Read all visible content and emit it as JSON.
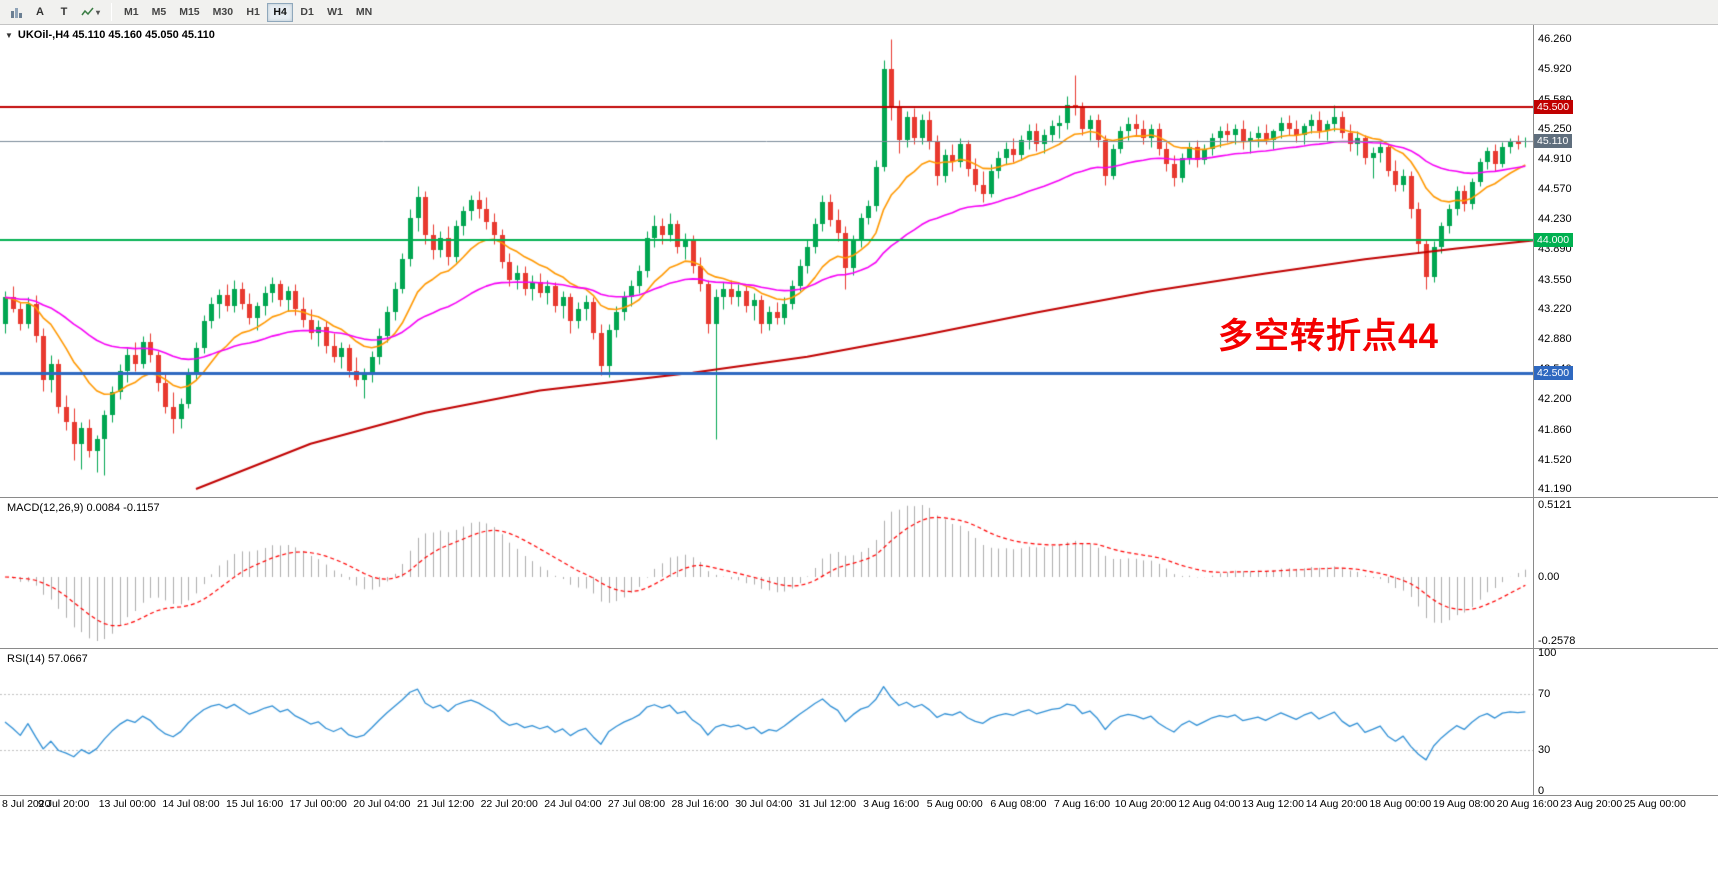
{
  "toolbar": {
    "icons": {
      "a": "A",
      "t": "T",
      "caret": "▾"
    },
    "timeframes": [
      {
        "label": "M1",
        "active": false
      },
      {
        "label": "M5",
        "active": false
      },
      {
        "label": "M15",
        "active": false
      },
      {
        "label": "M30",
        "active": false
      },
      {
        "label": "H1",
        "active": false
      },
      {
        "label": "H4",
        "active": true
      },
      {
        "label": "D1",
        "active": false
      },
      {
        "label": "W1",
        "active": false
      },
      {
        "label": "MN",
        "active": false
      }
    ]
  },
  "chart": {
    "caret_icon": "▼",
    "title": "UKOil-,H4 45.110 45.160 45.050 45.110",
    "annotation": "多空转折点44"
  },
  "macd": {
    "label": "MACD(12,26,9) 0.0084 -0.1157",
    "axis_labels": [
      "0.5121",
      "0.00",
      "-0.2578"
    ],
    "params": {
      "fast": 12,
      "slow": 26,
      "signal": 9
    },
    "values": {
      "macd": "0.0084",
      "signal": "-0.1157"
    }
  },
  "rsi": {
    "label": "RSI(14) 57.0667",
    "axis_labels": [
      "100",
      "70",
      "30",
      "0"
    ],
    "period": 14,
    "value": "57.0667",
    "levels": [
      70,
      30
    ]
  },
  "price_axis": {
    "max": 46.42,
    "min": 41.1,
    "ticks": [
      "46.260",
      "45.920",
      "45.580",
      "45.250",
      "44.910",
      "44.570",
      "44.230",
      "43.890",
      "43.550",
      "43.220",
      "42.880",
      "42.540",
      "42.200",
      "41.860",
      "41.520",
      "41.190"
    ]
  },
  "time_axis": [
    "8 Jul 2020",
    "9 Jul 20:00",
    "13 Jul 00:00",
    "14 Jul 08:00",
    "15 Jul 16:00",
    "17 Jul 00:00",
    "20 Jul 04:00",
    "21 Jul 12:00",
    "22 Jul 20:00",
    "24 Jul 04:00",
    "27 Jul 08:00",
    "28 Jul 16:00",
    "30 Jul 04:00",
    "31 Jul 12:00",
    "3 Aug 16:00",
    "5 Aug 00:00",
    "6 Aug 08:00",
    "7 Aug 16:00",
    "10 Aug 20:00",
    "12 Aug 04:00",
    "13 Aug 12:00",
    "14 Aug 20:00",
    "18 Aug 00:00",
    "19 Aug 08:00",
    "20 Aug 16:00",
    "23 Aug 20:00",
    "25 Aug 00:00"
  ],
  "chart_data": {
    "type": "candlestick",
    "symbol": "UKOil-",
    "timeframe": "H4",
    "ohlc_current": {
      "open": "45.110",
      "high": "45.160",
      "low": "45.050",
      "close": "45.110"
    },
    "colors": {
      "up": "#00A651",
      "down": "#E8392F",
      "ma_fast": "#FF9800",
      "ma_mid": "#F500F5",
      "ma_slow": "#C00000",
      "macd_hist": "#ADADAD",
      "macd_signal": "#FF0000",
      "rsi": "#2F8FD5",
      "rsi_level": "#c0c0c0",
      "annotation": "#F40000"
    },
    "hlines": [
      {
        "price": 45.5,
        "label": "45.500",
        "color": "#C00000",
        "width": 2
      },
      {
        "price": 44.0,
        "label": "44.000",
        "color": "#00B050",
        "width": 2
      },
      {
        "price": 42.5,
        "label": "42.500",
        "color": "#2E68C0",
        "width": 3
      }
    ],
    "current_price": {
      "price": 45.11,
      "label": "45.110",
      "color": "#7A8A99",
      "tag_bg": "#5F6E7D"
    },
    "ma_fast_period": 13,
    "ma_mid_period": 40,
    "ma_slow_points": [
      [
        25,
        41.19
      ],
      [
        40,
        41.7
      ],
      [
        55,
        42.05
      ],
      [
        70,
        42.3
      ],
      [
        90,
        42.5
      ],
      [
        105,
        42.68
      ],
      [
        120,
        42.92
      ],
      [
        135,
        43.18
      ],
      [
        150,
        43.42
      ],
      [
        165,
        43.62
      ],
      [
        178,
        43.78
      ],
      [
        190,
        43.9
      ],
      [
        201,
        44.0
      ]
    ],
    "candles": [
      [
        43.05,
        43.42,
        42.95,
        43.35
      ],
      [
        43.35,
        43.48,
        43.18,
        43.22
      ],
      [
        43.22,
        43.3,
        42.98,
        43.05
      ],
      [
        43.05,
        43.35,
        43.0,
        43.28
      ],
      [
        43.28,
        43.38,
        42.85,
        42.92
      ],
      [
        42.92,
        43.0,
        42.3,
        42.42
      ],
      [
        42.42,
        42.7,
        42.28,
        42.6
      ],
      [
        42.6,
        42.65,
        42.05,
        42.12
      ],
      [
        42.12,
        42.25,
        41.85,
        41.95
      ],
      [
        41.95,
        42.1,
        41.52,
        41.7
      ],
      [
        41.7,
        41.95,
        41.42,
        41.88
      ],
      [
        41.88,
        41.98,
        41.55,
        41.62
      ],
      [
        41.62,
        41.8,
        41.38,
        41.75
      ],
      [
        41.75,
        42.08,
        41.35,
        42.02
      ],
      [
        42.02,
        42.35,
        41.95,
        42.28
      ],
      [
        42.28,
        42.6,
        42.2,
        42.52
      ],
      [
        42.52,
        42.78,
        42.4,
        42.7
      ],
      [
        42.7,
        42.85,
        42.52,
        42.6
      ],
      [
        42.6,
        42.92,
        42.55,
        42.85
      ],
      [
        42.85,
        42.95,
        42.62,
        42.7
      ],
      [
        42.7,
        42.75,
        42.3,
        42.38
      ],
      [
        42.38,
        42.5,
        42.05,
        42.12
      ],
      [
        42.12,
        42.28,
        41.82,
        41.98
      ],
      [
        41.98,
        42.22,
        41.88,
        42.15
      ],
      [
        42.15,
        42.55,
        42.1,
        42.48
      ],
      [
        42.48,
        42.85,
        42.42,
        42.78
      ],
      [
        42.78,
        43.15,
        42.72,
        43.08
      ],
      [
        43.08,
        43.35,
        43.0,
        43.28
      ],
      [
        43.28,
        43.45,
        43.12,
        43.38
      ],
      [
        43.38,
        43.5,
        43.2,
        43.25
      ],
      [
        43.25,
        43.55,
        43.18,
        43.45
      ],
      [
        43.45,
        43.52,
        43.22,
        43.28
      ],
      [
        43.28,
        43.4,
        43.05,
        43.12
      ],
      [
        43.12,
        43.3,
        42.98,
        43.25
      ],
      [
        43.25,
        43.48,
        43.15,
        43.4
      ],
      [
        43.4,
        43.58,
        43.3,
        43.5
      ],
      [
        43.5,
        43.55,
        43.25,
        43.32
      ],
      [
        43.32,
        43.48,
        43.2,
        43.42
      ],
      [
        43.42,
        43.5,
        43.15,
        43.22
      ],
      [
        43.22,
        43.35,
        43.02,
        43.1
      ],
      [
        43.1,
        43.22,
        42.88,
        42.95
      ],
      [
        42.95,
        43.1,
        42.8,
        43.02
      ],
      [
        43.02,
        43.08,
        42.72,
        42.8
      ],
      [
        42.8,
        42.95,
        42.62,
        42.68
      ],
      [
        42.68,
        42.85,
        42.55,
        42.78
      ],
      [
        42.78,
        42.82,
        42.45,
        42.52
      ],
      [
        42.52,
        42.68,
        42.35,
        42.42
      ],
      [
        42.42,
        42.55,
        42.22,
        42.48
      ],
      [
        42.48,
        42.75,
        42.4,
        42.68
      ],
      [
        42.68,
        43.0,
        42.6,
        42.92
      ],
      [
        42.92,
        43.25,
        42.85,
        43.18
      ],
      [
        43.18,
        43.52,
        43.1,
        43.45
      ],
      [
        43.45,
        43.85,
        43.4,
        43.78
      ],
      [
        43.78,
        44.35,
        43.7,
        44.25
      ],
      [
        44.25,
        44.6,
        44.1,
        44.48
      ],
      [
        44.48,
        44.55,
        43.95,
        44.05
      ],
      [
        44.05,
        44.18,
        43.78,
        43.88
      ],
      [
        43.88,
        44.1,
        43.8,
        44.02
      ],
      [
        44.02,
        44.15,
        43.72,
        43.8
      ],
      [
        43.8,
        44.22,
        43.75,
        44.15
      ],
      [
        44.15,
        44.38,
        44.05,
        44.32
      ],
      [
        44.32,
        44.5,
        44.22,
        44.45
      ],
      [
        44.45,
        44.55,
        44.25,
        44.35
      ],
      [
        44.35,
        44.48,
        44.12,
        44.2
      ],
      [
        44.2,
        44.3,
        43.95,
        44.05
      ],
      [
        44.05,
        44.12,
        43.68,
        43.75
      ],
      [
        43.75,
        43.85,
        43.48,
        43.55
      ],
      [
        43.55,
        43.72,
        43.45,
        43.62
      ],
      [
        43.62,
        43.7,
        43.38,
        43.45
      ],
      [
        43.45,
        43.6,
        43.32,
        43.52
      ],
      [
        43.52,
        43.62,
        43.35,
        43.4
      ],
      [
        43.4,
        43.55,
        43.28,
        43.48
      ],
      [
        43.48,
        43.52,
        43.18,
        43.25
      ],
      [
        43.25,
        43.42,
        43.12,
        43.35
      ],
      [
        43.35,
        43.4,
        42.95,
        43.08
      ],
      [
        43.08,
        43.3,
        43.0,
        43.22
      ],
      [
        43.22,
        43.38,
        43.1,
        43.3
      ],
      [
        43.3,
        43.35,
        42.88,
        42.95
      ],
      [
        42.95,
        43.05,
        42.48,
        42.58
      ],
      [
        42.58,
        43.05,
        42.45,
        42.98
      ],
      [
        42.98,
        43.25,
        42.9,
        43.18
      ],
      [
        43.18,
        43.42,
        43.1,
        43.35
      ],
      [
        43.35,
        43.55,
        43.25,
        43.48
      ],
      [
        43.48,
        43.72,
        43.4,
        43.65
      ],
      [
        43.65,
        44.1,
        43.58,
        44.02
      ],
      [
        44.02,
        44.28,
        43.92,
        44.15
      ],
      [
        44.15,
        44.25,
        43.95,
        44.05
      ],
      [
        44.05,
        44.3,
        43.98,
        44.18
      ],
      [
        44.18,
        44.22,
        43.85,
        43.92
      ],
      [
        43.92,
        44.08,
        43.78,
        44.0
      ],
      [
        44.0,
        44.05,
        43.62,
        43.7
      ],
      [
        43.7,
        43.8,
        43.42,
        43.5
      ],
      [
        43.5,
        43.55,
        42.95,
        43.05
      ],
      [
        43.05,
        43.45,
        41.75,
        43.35
      ],
      [
        43.35,
        43.52,
        43.22,
        43.45
      ],
      [
        43.45,
        43.55,
        43.28,
        43.35
      ],
      [
        43.35,
        43.5,
        43.25,
        43.42
      ],
      [
        43.42,
        43.48,
        43.18,
        43.25
      ],
      [
        43.25,
        43.4,
        43.1,
        43.32
      ],
      [
        43.32,
        43.38,
        42.95,
        43.05
      ],
      [
        43.05,
        43.25,
        42.98,
        43.18
      ],
      [
        43.18,
        43.3,
        43.05,
        43.12
      ],
      [
        43.12,
        43.35,
        43.05,
        43.28
      ],
      [
        43.28,
        43.55,
        43.22,
        43.48
      ],
      [
        43.48,
        43.78,
        43.42,
        43.7
      ],
      [
        43.7,
        44.0,
        43.62,
        43.92
      ],
      [
        43.92,
        44.25,
        43.85,
        44.18
      ],
      [
        44.18,
        44.5,
        44.1,
        44.42
      ],
      [
        44.42,
        44.52,
        44.15,
        44.22
      ],
      [
        44.22,
        44.35,
        43.98,
        44.08
      ],
      [
        44.08,
        44.15,
        43.45,
        43.68
      ],
      [
        43.68,
        44.05,
        43.6,
        43.98
      ],
      [
        43.98,
        44.3,
        43.92,
        44.25
      ],
      [
        44.25,
        44.45,
        44.18,
        44.38
      ],
      [
        44.38,
        44.9,
        44.32,
        44.82
      ],
      [
        44.82,
        46.02,
        44.78,
        45.92
      ],
      [
        45.92,
        46.26,
        45.35,
        45.48
      ],
      [
        45.48,
        45.58,
        44.98,
        45.12
      ],
      [
        45.12,
        45.45,
        45.05,
        45.38
      ],
      [
        45.38,
        45.48,
        45.08,
        45.15
      ],
      [
        45.15,
        45.42,
        45.08,
        45.35
      ],
      [
        45.35,
        45.45,
        45.02,
        45.1
      ],
      [
        45.1,
        45.18,
        44.62,
        44.72
      ],
      [
        44.72,
        45.02,
        44.65,
        44.95
      ],
      [
        44.95,
        45.08,
        44.78,
        44.88
      ],
      [
        44.88,
        45.15,
        44.82,
        45.08
      ],
      [
        45.08,
        45.12,
        44.72,
        44.8
      ],
      [
        44.8,
        44.92,
        44.55,
        44.62
      ],
      [
        44.62,
        44.78,
        44.42,
        44.52
      ],
      [
        44.52,
        44.85,
        44.48,
        44.78
      ],
      [
        44.78,
        45.0,
        44.7,
        44.92
      ],
      [
        44.92,
        45.1,
        44.85,
        45.02
      ],
      [
        45.02,
        45.15,
        44.88,
        44.95
      ],
      [
        44.95,
        45.18,
        44.9,
        45.12
      ],
      [
        45.12,
        45.3,
        45.02,
        45.22
      ],
      [
        45.22,
        45.32,
        45.0,
        45.08
      ],
      [
        45.08,
        45.25,
        44.98,
        45.18
      ],
      [
        45.18,
        45.35,
        45.1,
        45.28
      ],
      [
        45.28,
        45.4,
        45.15,
        45.32
      ],
      [
        45.32,
        45.62,
        45.25,
        45.52
      ],
      [
        45.52,
        45.86,
        45.4,
        45.48
      ],
      [
        45.48,
        45.55,
        45.18,
        45.25
      ],
      [
        45.25,
        45.4,
        45.12,
        45.35
      ],
      [
        45.35,
        45.42,
        45.05,
        45.12
      ],
      [
        45.12,
        45.18,
        44.62,
        44.72
      ],
      [
        44.72,
        45.08,
        44.68,
        45.02
      ],
      [
        45.02,
        45.28,
        44.98,
        45.22
      ],
      [
        45.22,
        45.38,
        45.12,
        45.3
      ],
      [
        45.3,
        45.42,
        45.18,
        45.25
      ],
      [
        45.25,
        45.35,
        45.08,
        45.15
      ],
      [
        45.15,
        45.3,
        45.05,
        45.25
      ],
      [
        45.25,
        45.32,
        44.95,
        45.02
      ],
      [
        45.02,
        45.1,
        44.78,
        44.85
      ],
      [
        44.85,
        44.95,
        44.6,
        44.7
      ],
      [
        44.7,
        44.98,
        44.65,
        44.92
      ],
      [
        44.92,
        45.1,
        44.85,
        45.05
      ],
      [
        45.05,
        45.12,
        44.82,
        44.9
      ],
      [
        44.9,
        45.08,
        44.85,
        45.02
      ],
      [
        45.02,
        45.2,
        44.95,
        45.15
      ],
      [
        45.15,
        45.28,
        45.05,
        45.22
      ],
      [
        45.22,
        45.32,
        45.1,
        45.18
      ],
      [
        45.18,
        45.3,
        45.08,
        45.25
      ],
      [
        45.25,
        45.35,
        45.02,
        45.1
      ],
      [
        45.1,
        45.22,
        44.98,
        45.15
      ],
      [
        45.15,
        45.28,
        45.05,
        45.2
      ],
      [
        45.2,
        45.3,
        45.08,
        45.12
      ],
      [
        45.12,
        45.25,
        45.02,
        45.22
      ],
      [
        45.22,
        45.38,
        45.15,
        45.32
      ],
      [
        45.32,
        45.4,
        45.18,
        45.25
      ],
      [
        45.25,
        45.35,
        45.1,
        45.18
      ],
      [
        45.18,
        45.32,
        45.08,
        45.28
      ],
      [
        45.28,
        45.42,
        45.2,
        45.35
      ],
      [
        45.35,
        45.45,
        45.15,
        45.22
      ],
      [
        45.22,
        45.35,
        45.12,
        45.3
      ],
      [
        45.3,
        45.52,
        45.22,
        45.38
      ],
      [
        45.38,
        45.45,
        45.15,
        45.2
      ],
      [
        45.2,
        45.3,
        45.0,
        45.08
      ],
      [
        45.08,
        45.22,
        44.95,
        45.15
      ],
      [
        45.15,
        45.18,
        44.85,
        44.92
      ],
      [
        44.92,
        45.05,
        44.7,
        44.98
      ],
      [
        44.98,
        45.1,
        44.88,
        45.05
      ],
      [
        45.05,
        45.08,
        44.72,
        44.78
      ],
      [
        44.78,
        44.9,
        44.55,
        44.62
      ],
      [
        44.62,
        44.8,
        44.55,
        44.72
      ],
      [
        44.72,
        44.78,
        44.25,
        44.35
      ],
      [
        44.35,
        44.42,
        43.85,
        43.95
      ],
      [
        43.95,
        44.0,
        43.45,
        43.58
      ],
      [
        43.58,
        43.98,
        43.52,
        43.92
      ],
      [
        43.92,
        44.2,
        43.85,
        44.15
      ],
      [
        44.15,
        44.4,
        44.08,
        44.35
      ],
      [
        44.35,
        44.6,
        44.28,
        44.55
      ],
      [
        44.55,
        44.62,
        44.32,
        44.4
      ],
      [
        44.4,
        44.7,
        44.35,
        44.65
      ],
      [
        44.65,
        44.92,
        44.6,
        44.88
      ],
      [
        44.88,
        45.05,
        44.8,
        45.0
      ],
      [
        45.0,
        45.08,
        44.78,
        44.85
      ],
      [
        44.85,
        45.1,
        44.82,
        45.05
      ],
      [
        45.05,
        45.15,
        44.98,
        45.1
      ],
      [
        45.1,
        45.18,
        45.02,
        45.08
      ],
      [
        45.11,
        45.16,
        45.05,
        45.11
      ]
    ]
  }
}
